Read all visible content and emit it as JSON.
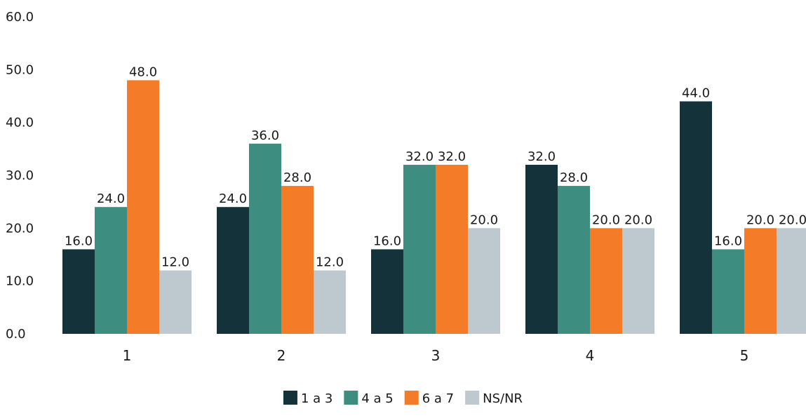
{
  "chart_data": {
    "type": "bar",
    "categories": [
      "1",
      "2",
      "3",
      "4",
      "5"
    ],
    "series": [
      {
        "name": "1 a 3",
        "color": "#13323a",
        "values": [
          16.0,
          24.0,
          16.0,
          32.0,
          44.0
        ]
      },
      {
        "name": "4 a 5",
        "color": "#3d8e80",
        "values": [
          24.0,
          36.0,
          32.0,
          28.0,
          16.0
        ]
      },
      {
        "name": "6 a 7",
        "color": "#f47b28",
        "values": [
          48.0,
          28.0,
          32.0,
          20.0,
          20.0
        ]
      },
      {
        "name": "NS/NR",
        "color": "#bdc9cf",
        "values": [
          12.0,
          12.0,
          20.0,
          20.0,
          20.0
        ]
      }
    ],
    "y_ticks": [
      "0.0",
      "10.0",
      "20.0",
      "30.0",
      "40.0",
      "50.0",
      "60.0"
    ],
    "ylim": [
      0,
      60
    ],
    "grid": false,
    "legend_position": "bottom-center",
    "value_decimals": 1
  }
}
